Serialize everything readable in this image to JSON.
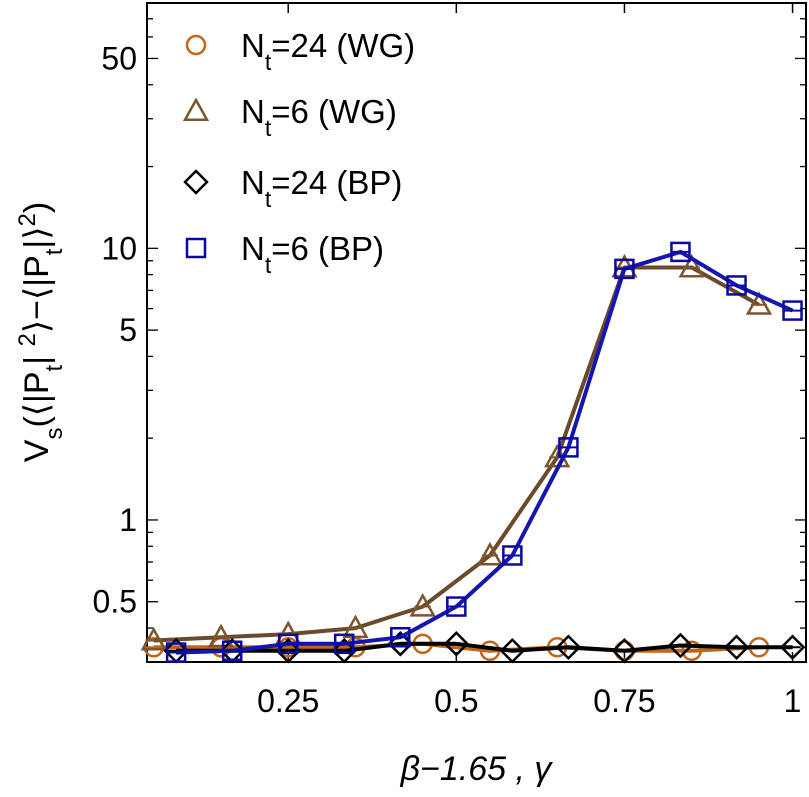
{
  "chart_data": {
    "type": "line",
    "xlabel": "β−1.65 , γ",
    "ylabel_main": "V",
    "ylabel_sub": "s",
    "ylabel_rest": "(⟨|P",
    "ylabel_sub2": "t",
    "ylabel_rest2": "| ",
    "ylabel_sup": "2",
    "ylabel_rest3": "⟩−⟨|P",
    "ylabel_sub3": "t",
    "ylabel_rest4": "|⟩",
    "ylabel_sup2": "2",
    "ylabel_rest5": ")",
    "y_scale": "log",
    "xlim": [
      0.04,
      1.02
    ],
    "ylim": [
      0.3,
      80
    ],
    "x_ticks": [
      0.25,
      0.5,
      0.75,
      1
    ],
    "x_tick_labels": [
      "0.25",
      "0.5",
      "0.75",
      "1"
    ],
    "y_ticks": [
      0.5,
      1,
      5,
      10,
      50
    ],
    "y_tick_labels": [
      "0.5",
      "1",
      "5",
      "10",
      "50"
    ],
    "legend_position": "top-left",
    "series": [
      {
        "name_base": "N",
        "name_sub": "t",
        "name_rest": "=24 (WG)",
        "marker": "circle",
        "color": "#c0651a",
        "line_color": "#c0651a",
        "x": [
          0.05,
          0.15,
          0.25,
          0.35,
          0.45,
          0.55,
          0.65,
          0.75,
          0.85,
          0.95
        ],
        "y": [
          0.34,
          0.34,
          0.34,
          0.34,
          0.35,
          0.33,
          0.34,
          0.33,
          0.33,
          0.34
        ]
      },
      {
        "name_base": "N",
        "name_sub": "t",
        "name_rest": "=6 (WG)",
        "marker": "triangle",
        "color": "#7a5530",
        "line_color": "#6b4a2b",
        "x": [
          0.05,
          0.15,
          0.25,
          0.35,
          0.45,
          0.55,
          0.65,
          0.75,
          0.85,
          0.95
        ],
        "y": [
          0.36,
          0.37,
          0.38,
          0.4,
          0.48,
          0.74,
          1.7,
          8.5,
          8.5,
          6.2
        ]
      },
      {
        "name_base": "N",
        "name_sub": "t",
        "name_rest": "=24 (BP)",
        "marker": "diamond",
        "color": "#000000",
        "line_color": "#000000",
        "x": [
          0.0833,
          0.1667,
          0.25,
          0.3333,
          0.4167,
          0.5,
          0.5833,
          0.6667,
          0.75,
          0.8333,
          0.9167,
          1.0
        ],
        "y": [
          0.33,
          0.33,
          0.33,
          0.33,
          0.35,
          0.35,
          0.33,
          0.34,
          0.33,
          0.345,
          0.34,
          0.34
        ]
      },
      {
        "name_base": "N",
        "name_sub": "t",
        "name_rest": "=6 (BP)",
        "marker": "square",
        "color": "#0a0aa0",
        "line_color": "#1515b0",
        "x": [
          0.0833,
          0.1667,
          0.25,
          0.3333,
          0.4167,
          0.5,
          0.5833,
          0.6667,
          0.75,
          0.8333,
          0.9167,
          1.0
        ],
        "y": [
          0.325,
          0.33,
          0.35,
          0.35,
          0.37,
          0.48,
          0.74,
          1.85,
          8.4,
          9.7,
          7.3,
          5.9
        ]
      }
    ]
  }
}
